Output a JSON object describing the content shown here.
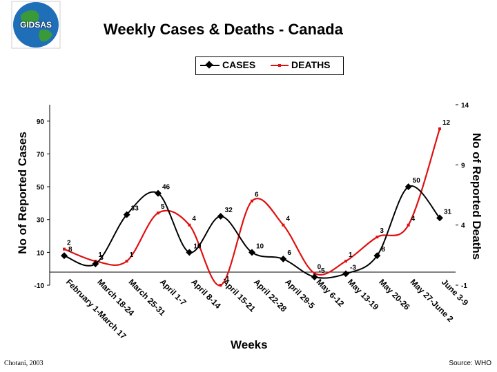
{
  "logo": {
    "text": "GIDSAS",
    "colors": {
      "ocean": "#1f6fb8",
      "land": "#3a9a3a"
    }
  },
  "title": "Weekly Cases & Deaths - Canada",
  "legend": {
    "cases_label": "CASES",
    "deaths_label": "DEATHS"
  },
  "footer": {
    "left": "Chotani, 2003",
    "right": "Source: WHO"
  },
  "chart_data": {
    "type": "line",
    "xlabel": "Weeks",
    "ylabel_left": "No of Reported Cases",
    "ylabel_right": "No of Reported Deaths",
    "categories": [
      "February 1-March 17",
      "March 18-24",
      "March 25-31",
      "April 1-7",
      "April 8-14",
      "April 15-21",
      "April 22-28",
      "April 29-5",
      "May 6-12",
      "May 13-19",
      "May 20-26",
      "May 27-June 2",
      "June 3-9"
    ],
    "left_axis": {
      "ylim": [
        -10,
        100
      ],
      "ticks": [
        "-10",
        "10",
        "30",
        "50",
        "70",
        "90"
      ]
    },
    "right_axis": {
      "ylim": [
        -1,
        14
      ],
      "ticks": [
        "-1",
        "4",
        "9",
        "14"
      ]
    },
    "series": [
      {
        "name": "CASES",
        "axis": "left",
        "color": "#000000",
        "values": [
          8,
          3,
          33,
          46,
          10,
          32,
          10,
          6,
          -5,
          -3,
          8,
          50,
          31
        ],
        "labels": [
          "8",
          "3",
          "33",
          "46",
          "10",
          "32",
          "10",
          "6",
          "-5",
          "-3",
          "8",
          "50",
          "31"
        ]
      },
      {
        "name": "DEATHS",
        "axis": "right",
        "color": "#e01010",
        "values": [
          2,
          1,
          1,
          5,
          4,
          -1,
          6,
          4,
          0,
          1,
          3,
          4,
          12
        ],
        "labels": [
          "2",
          "1",
          "1",
          "5",
          "4",
          "-1",
          "6",
          "4",
          "0",
          "1",
          "3",
          "4",
          "12"
        ]
      }
    ],
    "grid": false,
    "legend_position": "top-center"
  }
}
